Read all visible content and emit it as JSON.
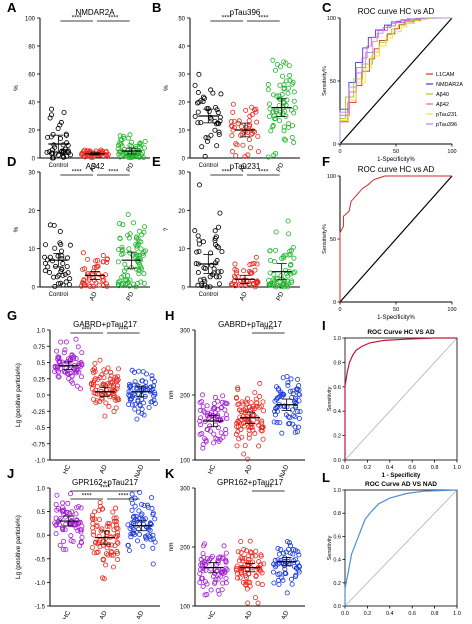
{
  "colors": {
    "control": "#000000",
    "ad": "#e8281f",
    "pd": "#1fb52a",
    "hc": "#a020d0",
    "nad": "#1a3ad8",
    "blackline": "#000000",
    "grey": "#b0b0b0",
    "red": "#d32a2a",
    "blue": "#4a90d9"
  },
  "panels": [
    {
      "id": "A",
      "letter": "A",
      "title": "NMDAR2A",
      "ylabel": "%",
      "ylim": [
        0,
        100
      ],
      "yticks": [
        "0",
        "20",
        "40",
        "60",
        "80",
        "100"
      ],
      "groups": [
        "Control",
        "AD",
        "PD"
      ],
      "colors": [
        "control",
        "ad",
        "pd"
      ],
      "means": [
        10,
        3,
        5
      ],
      "sds": [
        18,
        2,
        6
      ],
      "ns": [
        40,
        45,
        60
      ],
      "sig": [
        "****",
        "****"
      ]
    },
    {
      "id": "B",
      "letter": "B",
      "title": "pTau396",
      "ylabel": "%",
      "ylim": [
        0,
        50
      ],
      "yticks": [
        "0",
        "10",
        "20",
        "30",
        "40",
        "50"
      ],
      "groups": [
        "Control",
        "AD",
        "PD"
      ],
      "colors": [
        "control",
        "ad",
        "pd"
      ],
      "means": [
        15,
        10,
        18
      ],
      "sds": [
        7,
        7,
        9
      ],
      "ns": [
        40,
        45,
        70
      ],
      "sig": [
        "****",
        "****"
      ]
    },
    {
      "id": "D",
      "letter": "D",
      "title": "Aβ42",
      "ylabel": "%",
      "ylim": [
        0,
        30
      ],
      "yticks": [
        "0",
        "10",
        "20",
        "30"
      ],
      "groups": [
        "Control",
        "AD",
        "PD"
      ],
      "colors": [
        "control",
        "ad",
        "pd"
      ],
      "means": [
        7,
        3,
        7
      ],
      "sds": [
        5,
        3,
        6
      ],
      "ns": [
        40,
        45,
        80
      ],
      "sig": [
        "****",
        "****"
      ]
    },
    {
      "id": "E",
      "letter": "E",
      "title": "pTau231",
      "ylabel": "?",
      "ylim": [
        0,
        30
      ],
      "yticks": [
        "0",
        "10",
        "20",
        "30"
      ],
      "groups": [
        "Control",
        "AD",
        "PD"
      ],
      "colors": [
        "control",
        "ad",
        "pd"
      ],
      "means": [
        6,
        2,
        4
      ],
      "sds": [
        7,
        3,
        6
      ],
      "ns": [
        45,
        45,
        60
      ],
      "sig": [
        "****",
        "****"
      ]
    },
    {
      "id": "G",
      "letter": "G",
      "title": "GABRD+pTau217",
      "ylabel": "Lg (positive particle%)",
      "ylim": [
        -1.0,
        1.0
      ],
      "yticks": [
        "-1.0",
        "-0.75",
        "-0.5",
        "-0.25",
        "0.0",
        "0.25",
        "0.5",
        "0.75",
        "1.0"
      ],
      "groups": [
        "HC",
        "AD",
        "NAD"
      ],
      "colors": [
        "hc",
        "ad",
        "nad"
      ],
      "means": [
        0.45,
        0.05,
        0.05
      ],
      "sds": [
        0.17,
        0.2,
        0.22
      ],
      "ns": [
        70,
        80,
        70
      ],
      "sig": [
        "****",
        "****"
      ]
    },
    {
      "id": "H",
      "letter": "H",
      "title": "GABRD+pTau217",
      "ylabel": "nm",
      "ylim": [
        100,
        300
      ],
      "yticks": [
        "100",
        "200",
        "300"
      ],
      "groups": [
        "HC",
        "AD",
        "NAD"
      ],
      "colors": [
        "hc",
        "ad",
        "nad"
      ],
      "means": [
        160,
        165,
        185
      ],
      "sds": [
        25,
        25,
        25
      ],
      "ns": [
        70,
        90,
        70
      ],
      "sig": [
        "",
        "****"
      ]
    },
    {
      "id": "J",
      "letter": "J",
      "title": "GPR162+pTau217",
      "ylabel": "Lg (positive particle%)",
      "ylim": [
        -1.5,
        1.0
      ],
      "yticks": [
        "-1.5",
        "-1.0",
        "-0.5",
        "0.0",
        "0.5",
        "1.0"
      ],
      "groups": [
        "HC",
        "AD",
        "NAD"
      ],
      "colors": [
        "hc",
        "ad",
        "nad"
      ],
      "means": [
        0.3,
        -0.05,
        0.2
      ],
      "sds": [
        0.3,
        0.4,
        0.3
      ],
      "ns": [
        70,
        80,
        70
      ],
      "sig": [
        "****",
        "****",
        "****"
      ]
    },
    {
      "id": "K",
      "letter": "K",
      "title": "GPR162+pTau217",
      "ylabel": "nm",
      "ylim": [
        100,
        300
      ],
      "yticks": [
        "100",
        "200",
        "300"
      ],
      "groups": [
        "HC",
        "AD",
        "NAD"
      ],
      "colors": [
        "hc",
        "ad",
        "nad"
      ],
      "means": [
        165,
        165,
        175
      ],
      "sds": [
        25,
        20,
        20
      ],
      "ns": [
        70,
        70,
        60
      ],
      "sig": [
        "",
        "***"
      ]
    }
  ],
  "roc": [
    {
      "id": "C",
      "letter": "C",
      "title": "ROC curve HC vs AD",
      "ylabel": "Sensitivity%",
      "xlabel": "1-Specificity%",
      "xticks": [
        "0",
        "50",
        "100"
      ],
      "yticks": [
        "0",
        "50",
        "100"
      ],
      "legend": [
        {
          "label": "L1CAM",
          "color": "#e8281f"
        },
        {
          "label": "NMDAR2A",
          "color": "#3c3cdc"
        },
        {
          "label": "Aβ40",
          "color": "#9ad22a"
        },
        {
          "label": "Aβ42",
          "color": "#e65cc4"
        },
        {
          "label": "pTau231",
          "color": "#f0e040"
        },
        {
          "label": "pTau396",
          "color": "#b090e0"
        }
      ]
    },
    {
      "id": "F",
      "letter": "F",
      "title": "ROC curve HC vs AD",
      "ylabel": "Sensitivity%",
      "xlabel": "1-Specificity%",
      "xticks": [
        "0",
        "50",
        "100"
      ],
      "yticks": [
        "0",
        "50",
        "100"
      ]
    },
    {
      "id": "I",
      "letter": "I",
      "title": "ROC Curve HC VS AD",
      "ylabel": "Sensitivity",
      "xlabel": "1 - Specificity",
      "xticks": [
        "0.0",
        "0.2",
        "0.4",
        "0.6",
        "0.8",
        "1.0"
      ],
      "yticks": [
        "0.0",
        "0.2",
        "0.4",
        "0.6",
        "0.8",
        "1.0"
      ]
    },
    {
      "id": "L",
      "letter": "L",
      "title": "ROC Curve AD VS NAD",
      "ylabel": "Sensitivity",
      "xlabel": "1 - Specificity",
      "xticks": [
        "0.0",
        "0.2",
        "0.4",
        "0.6",
        "0.8",
        "1.0"
      ],
      "yticks": [
        "0.0",
        "0.2",
        "0.4",
        "0.6",
        "0.8",
        "1.0"
      ]
    }
  ],
  "chart_data": [
    {
      "type": "scatter",
      "title": "NMDAR2A",
      "ylabel": "%",
      "categories": [
        "Control",
        "AD",
        "PD"
      ],
      "series": [
        {
          "name": "Control",
          "values": [
            10
          ]
        },
        {
          "name": "AD",
          "values": [
            3
          ]
        },
        {
          "name": "PD",
          "values": [
            5
          ]
        }
      ],
      "ylim": [
        0,
        100
      ]
    },
    {
      "type": "scatter",
      "title": "pTau396",
      "ylabel": "%",
      "categories": [
        "Control",
        "AD",
        "PD"
      ],
      "series": [
        {
          "name": "Control",
          "values": [
            15
          ]
        },
        {
          "name": "AD",
          "values": [
            10
          ]
        },
        {
          "name": "PD",
          "values": [
            18
          ]
        }
      ],
      "ylim": [
        0,
        50
      ]
    },
    {
      "type": "line",
      "title": "ROC curve HC vs AD",
      "xlabel": "1-Specificity%",
      "ylabel": "Sensitivity%",
      "series": [
        {
          "name": "L1CAM"
        },
        {
          "name": "NMDAR2A"
        },
        {
          "name": "Aβ40"
        },
        {
          "name": "Aβ42"
        },
        {
          "name": "pTau231"
        },
        {
          "name": "pTau396"
        }
      ],
      "xlim": [
        0,
        100
      ],
      "ylim": [
        0,
        100
      ]
    },
    {
      "type": "scatter",
      "title": "Aβ42",
      "ylabel": "%",
      "categories": [
        "Control",
        "AD",
        "PD"
      ],
      "series": [
        {
          "name": "Control",
          "values": [
            7
          ]
        },
        {
          "name": "AD",
          "values": [
            3
          ]
        },
        {
          "name": "PD",
          "values": [
            7
          ]
        }
      ],
      "ylim": [
        0,
        30
      ]
    },
    {
      "type": "scatter",
      "title": "pTau231",
      "categories": [
        "Control",
        "AD",
        "PD"
      ],
      "series": [
        {
          "name": "Control",
          "values": [
            6
          ]
        },
        {
          "name": "AD",
          "values": [
            2
          ]
        },
        {
          "name": "PD",
          "values": [
            4
          ]
        }
      ],
      "ylim": [
        0,
        30
      ]
    },
    {
      "type": "line",
      "title": "ROC curve HC vs AD",
      "xlabel": "1-Specificity%",
      "ylabel": "Sensitivity%",
      "xlim": [
        0,
        100
      ],
      "ylim": [
        0,
        100
      ]
    },
    {
      "type": "scatter",
      "title": "GABRD+pTau217",
      "ylabel": "Lg (positive particle%)",
      "categories": [
        "HC",
        "AD",
        "NAD"
      ],
      "series": [
        {
          "name": "HC",
          "values": [
            0.45
          ]
        },
        {
          "name": "AD",
          "values": [
            0.05
          ]
        },
        {
          "name": "NAD",
          "values": [
            0.05
          ]
        }
      ],
      "ylim": [
        -1.0,
        1.0
      ]
    },
    {
      "type": "scatter",
      "title": "GABRD+pTau217",
      "ylabel": "nm",
      "categories": [
        "HC",
        "AD",
        "NAD"
      ],
      "series": [
        {
          "name": "HC",
          "values": [
            160
          ]
        },
        {
          "name": "AD",
          "values": [
            165
          ]
        },
        {
          "name": "NAD",
          "values": [
            185
          ]
        }
      ],
      "ylim": [
        100,
        300
      ]
    },
    {
      "type": "line",
      "title": "ROC Curve HC VS AD",
      "xlabel": "1 - Specificity",
      "ylabel": "Sensitivity",
      "xlim": [
        0,
        1
      ],
      "ylim": [
        0,
        1
      ]
    },
    {
      "type": "scatter",
      "title": "GPR162+pTau217",
      "ylabel": "Lg (positive particle%)",
      "categories": [
        "HC",
        "AD",
        "NAD"
      ],
      "series": [
        {
          "name": "HC",
          "values": [
            0.3
          ]
        },
        {
          "name": "AD",
          "values": [
            -0.05
          ]
        },
        {
          "name": "NAD",
          "values": [
            0.2
          ]
        }
      ],
      "ylim": [
        -1.5,
        1.0
      ]
    },
    {
      "type": "scatter",
      "title": "GPR162+pTau217",
      "ylabel": "nm",
      "categories": [
        "HC",
        "AD",
        "NAD"
      ],
      "series": [
        {
          "name": "HC",
          "values": [
            165
          ]
        },
        {
          "name": "AD",
          "values": [
            165
          ]
        },
        {
          "name": "NAD",
          "values": [
            175
          ]
        }
      ],
      "ylim": [
        100,
        300
      ]
    },
    {
      "type": "line",
      "title": "ROC Curve AD VS NAD",
      "xlabel": "1 - Specificity",
      "ylabel": "Sensitivity",
      "xlim": [
        0,
        1
      ],
      "ylim": [
        0,
        1
      ]
    }
  ]
}
